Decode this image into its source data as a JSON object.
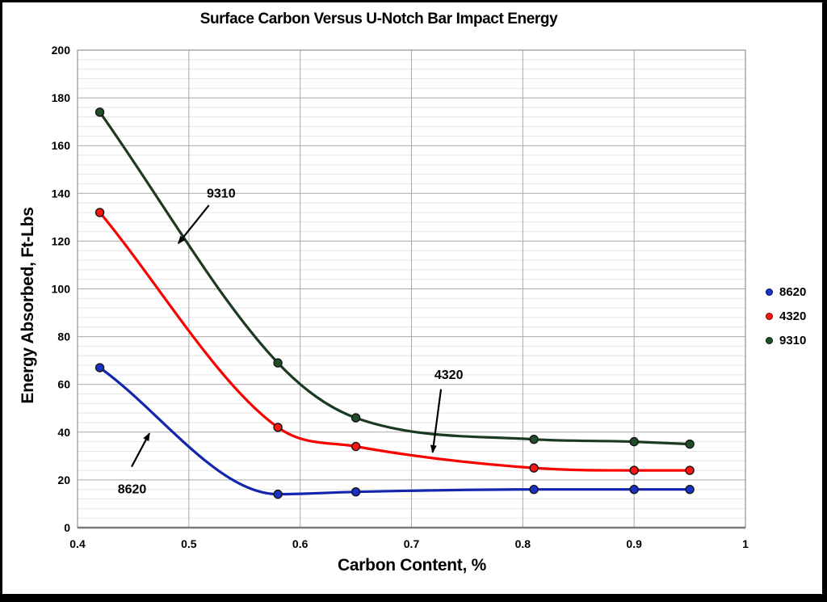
{
  "chart_data": {
    "type": "line",
    "title": "Surface Carbon Versus U-Notch Bar Impact Energy",
    "xlabel": "Carbon Content, %",
    "ylabel": "Energy Absorbed, Ft-Lbs",
    "xlim": [
      0.4,
      1
    ],
    "ylim": [
      0,
      200
    ],
    "x_ticks": [
      {
        "value": 0.4,
        "label": "0.4"
      },
      {
        "value": 0.5,
        "label": "0.5"
      },
      {
        "value": 0.6,
        "label": "0.6"
      },
      {
        "value": 0.7,
        "label": "0.7"
      },
      {
        "value": 0.8,
        "label": "0.8"
      },
      {
        "value": 0.9,
        "label": "0.9"
      },
      {
        "value": 1,
        "label": "1"
      }
    ],
    "y_tick_step": 20,
    "y_minor_step": 4,
    "grid": "major-and-minor-horizontal, major-vertical",
    "legend_position": "right-center",
    "x": [
      0.42,
      0.58,
      0.65,
      0.81,
      0.9,
      0.95
    ],
    "series": [
      {
        "name": "8620",
        "color": "#1426AE",
        "marker_color": "#1A32C8",
        "values": [
          67,
          14,
          15,
          16,
          16,
          16
        ]
      },
      {
        "name": "4320",
        "color": "#F90000",
        "marker_color": "#FF1414",
        "values": [
          132,
          42,
          34,
          25,
          24,
          24
        ]
      },
      {
        "name": "9310",
        "color": "#1B3A22",
        "marker_color": "#1F4F28",
        "values": [
          174,
          69,
          46,
          37,
          36,
          35
        ]
      }
    ],
    "annotations": [
      {
        "label": "9310",
        "text_at": [
          0.529,
          140
        ],
        "arrow_from": [
          0.518,
          135
        ],
        "arrow_to": [
          0.4905,
          119
        ]
      },
      {
        "label": "4320",
        "text_at": [
          0.7335,
          64
        ],
        "arrow_from": [
          0.7265,
          58
        ],
        "arrow_to": [
          0.719,
          31.5
        ]
      },
      {
        "label": "8620",
        "text_at": [
          0.449,
          16
        ],
        "arrow_from": [
          0.4486,
          25.5
        ],
        "arrow_to": [
          0.4646,
          39.5
        ]
      }
    ],
    "colors": {
      "grid_major": "#A9A9A9",
      "grid_minor": "#E4E4E4",
      "plot_border": "#999999",
      "axis_line": "#7A7A7A",
      "text": "#000000",
      "frame": "#000000",
      "background": "#FFFFFF"
    }
  }
}
